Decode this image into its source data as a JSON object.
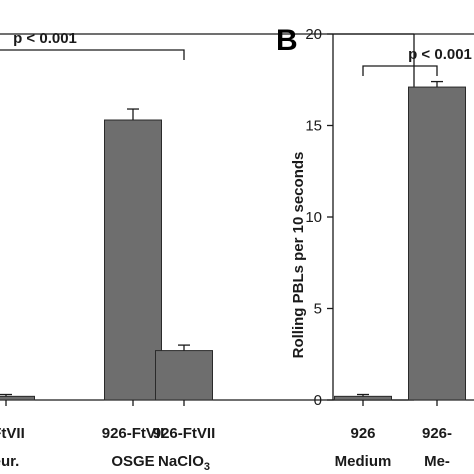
{
  "colors": {
    "bar_fill": "#6e6e6e",
    "bar_stroke": "#2a2a2a",
    "ink": "#1a1a1a",
    "background": "#ffffff"
  },
  "chart_data": [
    {
      "panel": "",
      "type": "bar",
      "categories": [
        {
          "line1": "-FtVII",
          "line2": "eur."
        },
        {
          "line1": "926-FtVII",
          "line2": "OSGE"
        },
        {
          "line1": "926-FtVII",
          "line2": "NaClO3"
        }
      ],
      "values": [
        0.2,
        15.3,
        2.7
      ],
      "errors": [
        0.1,
        0.6,
        0.3
      ],
      "ylim": [
        0,
        20
      ],
      "yticks": [],
      "ylabel": "",
      "annotation": "p < 0.001",
      "bracket": [
        0,
        2
      ],
      "grid": false
    },
    {
      "panel": "B",
      "type": "bar",
      "categories": [
        {
          "line1": "926",
          "line2": "Medium"
        },
        {
          "line1": "926-",
          "line2": "Me-"
        }
      ],
      "values": [
        0.2,
        17.1
      ],
      "errors": [
        0.1,
        0.3
      ],
      "ylim": [
        0,
        20
      ],
      "yticks": [
        "0",
        "5",
        "10",
        "15",
        "20"
      ],
      "ylabel": "Rolling PBLs per 10 seconds",
      "annotation": "p < 0.001",
      "bracket": [
        0,
        1
      ],
      "grid": false
    }
  ]
}
